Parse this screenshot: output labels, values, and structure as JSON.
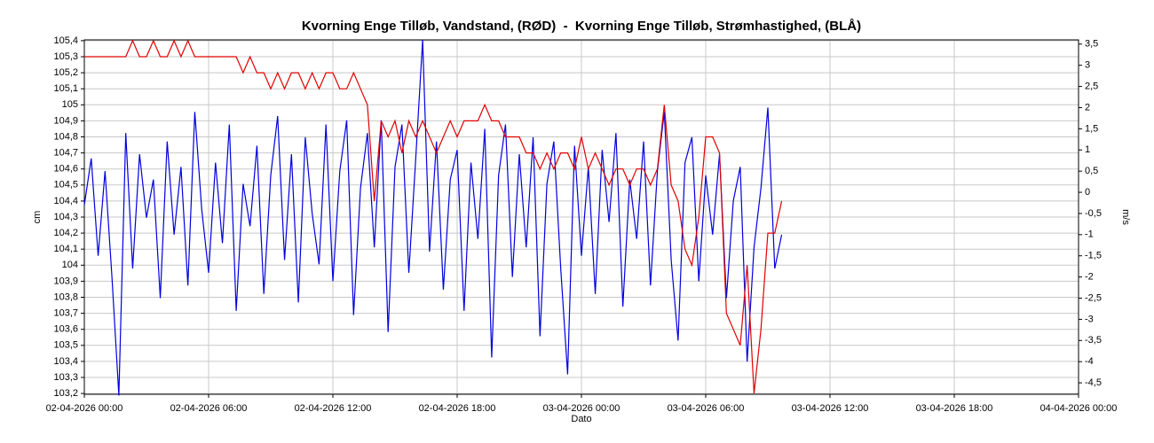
{
  "chart_data": {
    "type": "line",
    "title": "Kvorning Enge Tilløb, Vandstand, (RØD)  -  Kvorning Enge Tilløb, Strømhastighed, (BLÅ)",
    "ylabel": "cm",
    "y2label": "m/s",
    "xlabel": "Dato",
    "grid": true,
    "xlim": [
      "02-04-2026 00:00",
      "04-04-2026 00:00"
    ],
    "xticks": [
      "02-04-2026 00:00",
      "02-04-2026 06:00",
      "02-04-2026 12:00",
      "02-04-2026 18:00",
      "03-04-2026 00:00",
      "03-04-2026 06:00",
      "03-04-2026 12:00",
      "03-04-2026 18:00",
      "04-04-2026 00:00"
    ],
    "ylim": [
      103.195,
      105.405
    ],
    "yticks": [
      {
        "value": 103.2,
        "label": "103,2"
      },
      {
        "value": 103.3,
        "label": "103,3"
      },
      {
        "value": 103.4,
        "label": "103,4"
      },
      {
        "value": 103.5,
        "label": "103,5"
      },
      {
        "value": 103.6,
        "label": "103,6"
      },
      {
        "value": 103.7,
        "label": "103,7"
      },
      {
        "value": 103.8,
        "label": "103,8"
      },
      {
        "value": 103.9,
        "label": "103,9"
      },
      104,
      {
        "value": 104.1,
        "label": "104,1"
      },
      {
        "value": 104.2,
        "label": "104,2"
      },
      {
        "value": 104.3,
        "label": "104,3"
      },
      {
        "value": 104.4,
        "label": "104,4"
      },
      {
        "value": 104.5,
        "label": "104,5"
      },
      {
        "value": 104.6,
        "label": "104,6"
      },
      {
        "value": 104.7,
        "label": "104,7"
      },
      {
        "value": 104.8,
        "label": "104,8"
      },
      {
        "value": 104.9,
        "label": "104,9"
      },
      105,
      {
        "value": 105.1,
        "label": "105,1"
      },
      {
        "value": 105.2,
        "label": "105,2"
      },
      {
        "value": 105.3,
        "label": "105,3"
      },
      {
        "value": 105.4,
        "label": "105,4"
      }
    ],
    "y2lim": [
      -4.77,
      3.6
    ],
    "y2ticks": [
      {
        "value": -4.5,
        "label": "-4,5"
      },
      -4,
      {
        "value": -3.5,
        "label": "-3,5"
      },
      -3,
      {
        "value": -2.5,
        "label": "-2,5"
      },
      -2,
      {
        "value": -1.5,
        "label": "-1,5"
      },
      -1,
      {
        "value": -0.5,
        "label": "-0,5"
      },
      0,
      {
        "value": 0.5,
        "label": "0,5"
      },
      1,
      {
        "value": 1.5,
        "label": "1,5"
      },
      2,
      {
        "value": 2.5,
        "label": "2,5"
      },
      3,
      {
        "value": 3.5,
        "label": "3,5"
      }
    ],
    "x": [
      "02-04-2026 00:00",
      "02-04-2026 00:20",
      "02-04-2026 00:40",
      "02-04-2026 01:00",
      "02-04-2026 01:20",
      "02-04-2026 01:40",
      "02-04-2026 02:00",
      "02-04-2026 02:20",
      "02-04-2026 02:40",
      "02-04-2026 03:00",
      "02-04-2026 03:20",
      "02-04-2026 03:40",
      "02-04-2026 04:00",
      "02-04-2026 04:20",
      "02-04-2026 04:40",
      "02-04-2026 05:00",
      "02-04-2026 05:20",
      "02-04-2026 05:40",
      "02-04-2026 06:00",
      "02-04-2026 06:20",
      "02-04-2026 06:40",
      "02-04-2026 07:00",
      "02-04-2026 07:20",
      "02-04-2026 07:40",
      "02-04-2026 08:00",
      "02-04-2026 08:20",
      "02-04-2026 08:40",
      "02-04-2026 09:00",
      "02-04-2026 09:20",
      "02-04-2026 09:40",
      "02-04-2026 10:00",
      "02-04-2026 10:20",
      "02-04-2026 10:40",
      "02-04-2026 11:00",
      "02-04-2026 11:20",
      "02-04-2026 11:40",
      "02-04-2026 12:00",
      "02-04-2026 12:20",
      "02-04-2026 12:40",
      "02-04-2026 13:00",
      "02-04-2026 13:20",
      "02-04-2026 13:40",
      "02-04-2026 14:00",
      "02-04-2026 14:20",
      "02-04-2026 14:40",
      "02-04-2026 15:00",
      "02-04-2026 15:20",
      "02-04-2026 15:40",
      "02-04-2026 16:00",
      "02-04-2026 16:20",
      "02-04-2026 16:40",
      "02-04-2026 17:00",
      "02-04-2026 17:20",
      "02-04-2026 17:40",
      "02-04-2026 18:00",
      "02-04-2026 18:20",
      "02-04-2026 18:40",
      "02-04-2026 19:00",
      "02-04-2026 19:20",
      "02-04-2026 19:40",
      "02-04-2026 20:00",
      "02-04-2026 20:20",
      "02-04-2026 20:40",
      "02-04-2026 21:00",
      "02-04-2026 21:20",
      "02-04-2026 21:40",
      "02-04-2026 22:00",
      "02-04-2026 22:20",
      "02-04-2026 22:40",
      "02-04-2026 23:00",
      "02-04-2026 23:20",
      "02-04-2026 23:40",
      "03-04-2026 00:00",
      "03-04-2026 00:20",
      "03-04-2026 00:40",
      "03-04-2026 01:00",
      "03-04-2026 01:20",
      "03-04-2026 01:40",
      "03-04-2026 02:00",
      "03-04-2026 02:20",
      "03-04-2026 02:40",
      "03-04-2026 03:00",
      "03-04-2026 03:20",
      "03-04-2026 03:40",
      "03-04-2026 04:00",
      "03-04-2026 04:20",
      "03-04-2026 04:40",
      "03-04-2026 05:00",
      "03-04-2026 05:20",
      "03-04-2026 05:40",
      "03-04-2026 06:00",
      "03-04-2026 06:20",
      "03-04-2026 06:40",
      "03-04-2026 07:00",
      "03-04-2026 07:20",
      "03-04-2026 07:40",
      "03-04-2026 08:00",
      "03-04-2026 08:20",
      "03-04-2026 08:40",
      "03-04-2026 09:00",
      "03-04-2026 09:20",
      "03-04-2026 09:40"
    ],
    "series": [
      {
        "color": "#0000e0",
        "axis": "y2",
        "values": [
          -0.3,
          0.8,
          -1.5,
          0.5,
          -2.0,
          -4.8,
          1.4,
          -1.8,
          0.9,
          -0.6,
          0.3,
          -2.5,
          1.2,
          -1.0,
          0.6,
          -2.2,
          1.9,
          -0.4,
          -1.9,
          0.7,
          -1.2,
          1.6,
          -2.8,
          0.2,
          -0.8,
          1.1,
          -2.4,
          0.4,
          1.8,
          -1.6,
          0.9,
          -2.6,
          1.3,
          -0.5,
          -1.7,
          1.6,
          -2.1,
          0.5,
          1.7,
          -2.9,
          0.1,
          1.4,
          -1.3,
          1.7,
          -3.3,
          0.6,
          1.6,
          -1.9,
          0.8,
          3.6,
          -1.4,
          1.2,
          -2.3,
          0.3,
          1.0,
          -2.8,
          0.7,
          -1.1,
          1.5,
          -3.9,
          0.4,
          1.6,
          -2.0,
          0.9,
          -1.3,
          1.3,
          -3.4,
          0.2,
          1.2,
          -1.8,
          -4.3,
          1.1,
          -1.5,
          0.6,
          -2.4,
          1.0,
          -0.7,
          1.4,
          -2.7,
          0.3,
          -1.1,
          1.2,
          -2.2,
          0.5,
          1.9,
          -1.6,
          -3.5,
          0.7,
          1.3,
          -2.1,
          0.4,
          -1.0,
          0.9,
          -2.5,
          -0.2,
          0.6,
          -4.0,
          -1.3,
          0.1,
          2.0,
          -1.8,
          -1.0
        ]
      },
      {
        "color": "#e00000",
        "values": [
          105.3,
          105.3,
          105.3,
          105.3,
          105.3,
          105.3,
          105.3,
          105.4,
          105.3,
          105.3,
          105.4,
          105.3,
          105.3,
          105.4,
          105.3,
          105.4,
          105.3,
          105.3,
          105.3,
          105.3,
          105.3,
          105.3,
          105.3,
          105.2,
          105.3,
          105.2,
          105.2,
          105.1,
          105.2,
          105.1,
          105.2,
          105.2,
          105.1,
          105.2,
          105.1,
          105.2,
          105.2,
          105.1,
          105.1,
          105.2,
          105.1,
          105.0,
          104.4,
          104.9,
          104.8,
          104.9,
          104.7,
          104.9,
          104.8,
          104.9,
          104.8,
          104.7,
          104.8,
          104.9,
          104.8,
          104.9,
          104.9,
          104.9,
          105.0,
          104.9,
          104.9,
          104.8,
          104.8,
          104.8,
          104.7,
          104.7,
          104.6,
          104.7,
          104.6,
          104.7,
          104.7,
          104.6,
          104.8,
          104.6,
          104.7,
          104.6,
          104.5,
          104.6,
          104.6,
          104.5,
          104.6,
          104.6,
          104.5,
          104.6,
          105.0,
          104.5,
          104.4,
          104.1,
          104.0,
          104.3,
          104.8,
          104.8,
          104.7,
          103.7,
          103.6,
          103.5,
          104.0,
          103.2,
          103.6,
          104.2,
          104.2,
          104.4
        ]
      }
    ]
  }
}
